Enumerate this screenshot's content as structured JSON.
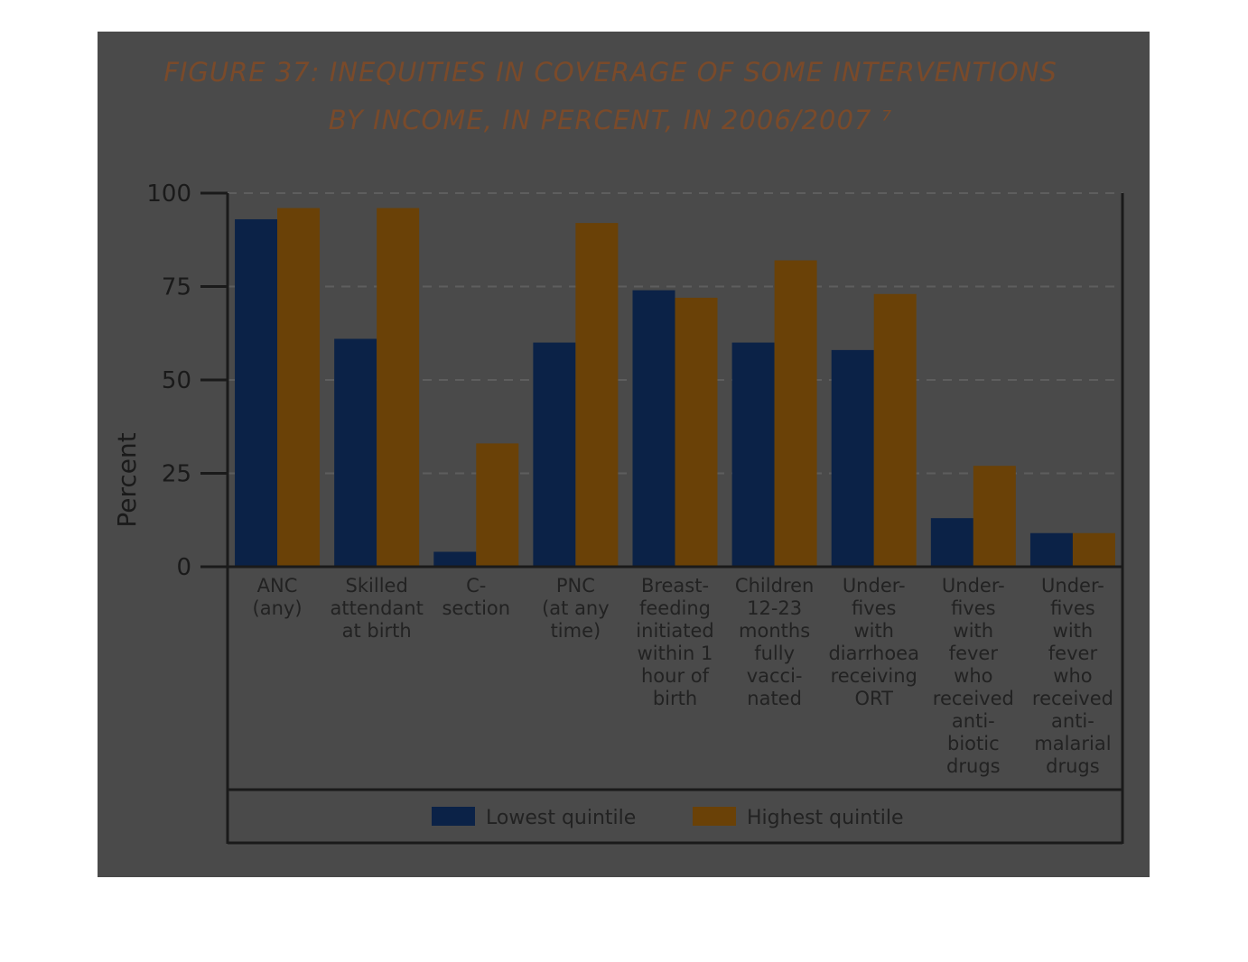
{
  "chart_data": {
    "type": "bar",
    "title": "FIGURE 37: INEQUITIES IN COVERAGE OF SOME INTERVENTIONS BY INCOME, IN PERCENT, IN 2006/2007",
    "title_lines": [
      "FIGURE 37: INEQUITIES IN COVERAGE OF SOME INTERVENTIONS",
      "BY INCOME, IN PERCENT, IN 2006/2007 ⁷"
    ],
    "xlabel": "",
    "ylabel": "Percent",
    "ylim": [
      0,
      100
    ],
    "yticks": [
      0,
      25,
      50,
      75,
      100
    ],
    "grid": true,
    "legend_position": "bottom",
    "categories": [
      [
        "ANC",
        "(any)"
      ],
      [
        "Skilled",
        "attendant",
        "at birth"
      ],
      [
        "C-",
        "section"
      ],
      [
        "PNC",
        "(at any",
        "time)"
      ],
      [
        "Breast-",
        "feeding",
        "initiated",
        "within 1",
        "hour of",
        "birth"
      ],
      [
        "Children",
        "12-23",
        "months",
        "fully",
        "vacci-",
        "nated"
      ],
      [
        "Under-",
        "fives",
        "with",
        "diarrhoea",
        "receiving",
        "ORT"
      ],
      [
        "Under-",
        "fives",
        "with",
        "fever",
        "who",
        "received",
        "anti-",
        "biotic",
        "drugs"
      ],
      [
        "Under-",
        "fives",
        "with",
        "fever",
        "who",
        "received",
        "anti-",
        "malarial",
        "drugs"
      ]
    ],
    "series": [
      {
        "name": "Lowest quintile",
        "color": "#0b2247",
        "values": [
          93,
          61,
          4,
          60,
          74,
          60,
          58,
          13,
          9
        ]
      },
      {
        "name": "Highest quintile",
        "color": "#6a4107",
        "values": [
          96,
          96,
          33,
          92,
          72,
          82,
          73,
          27,
          9
        ]
      }
    ]
  }
}
